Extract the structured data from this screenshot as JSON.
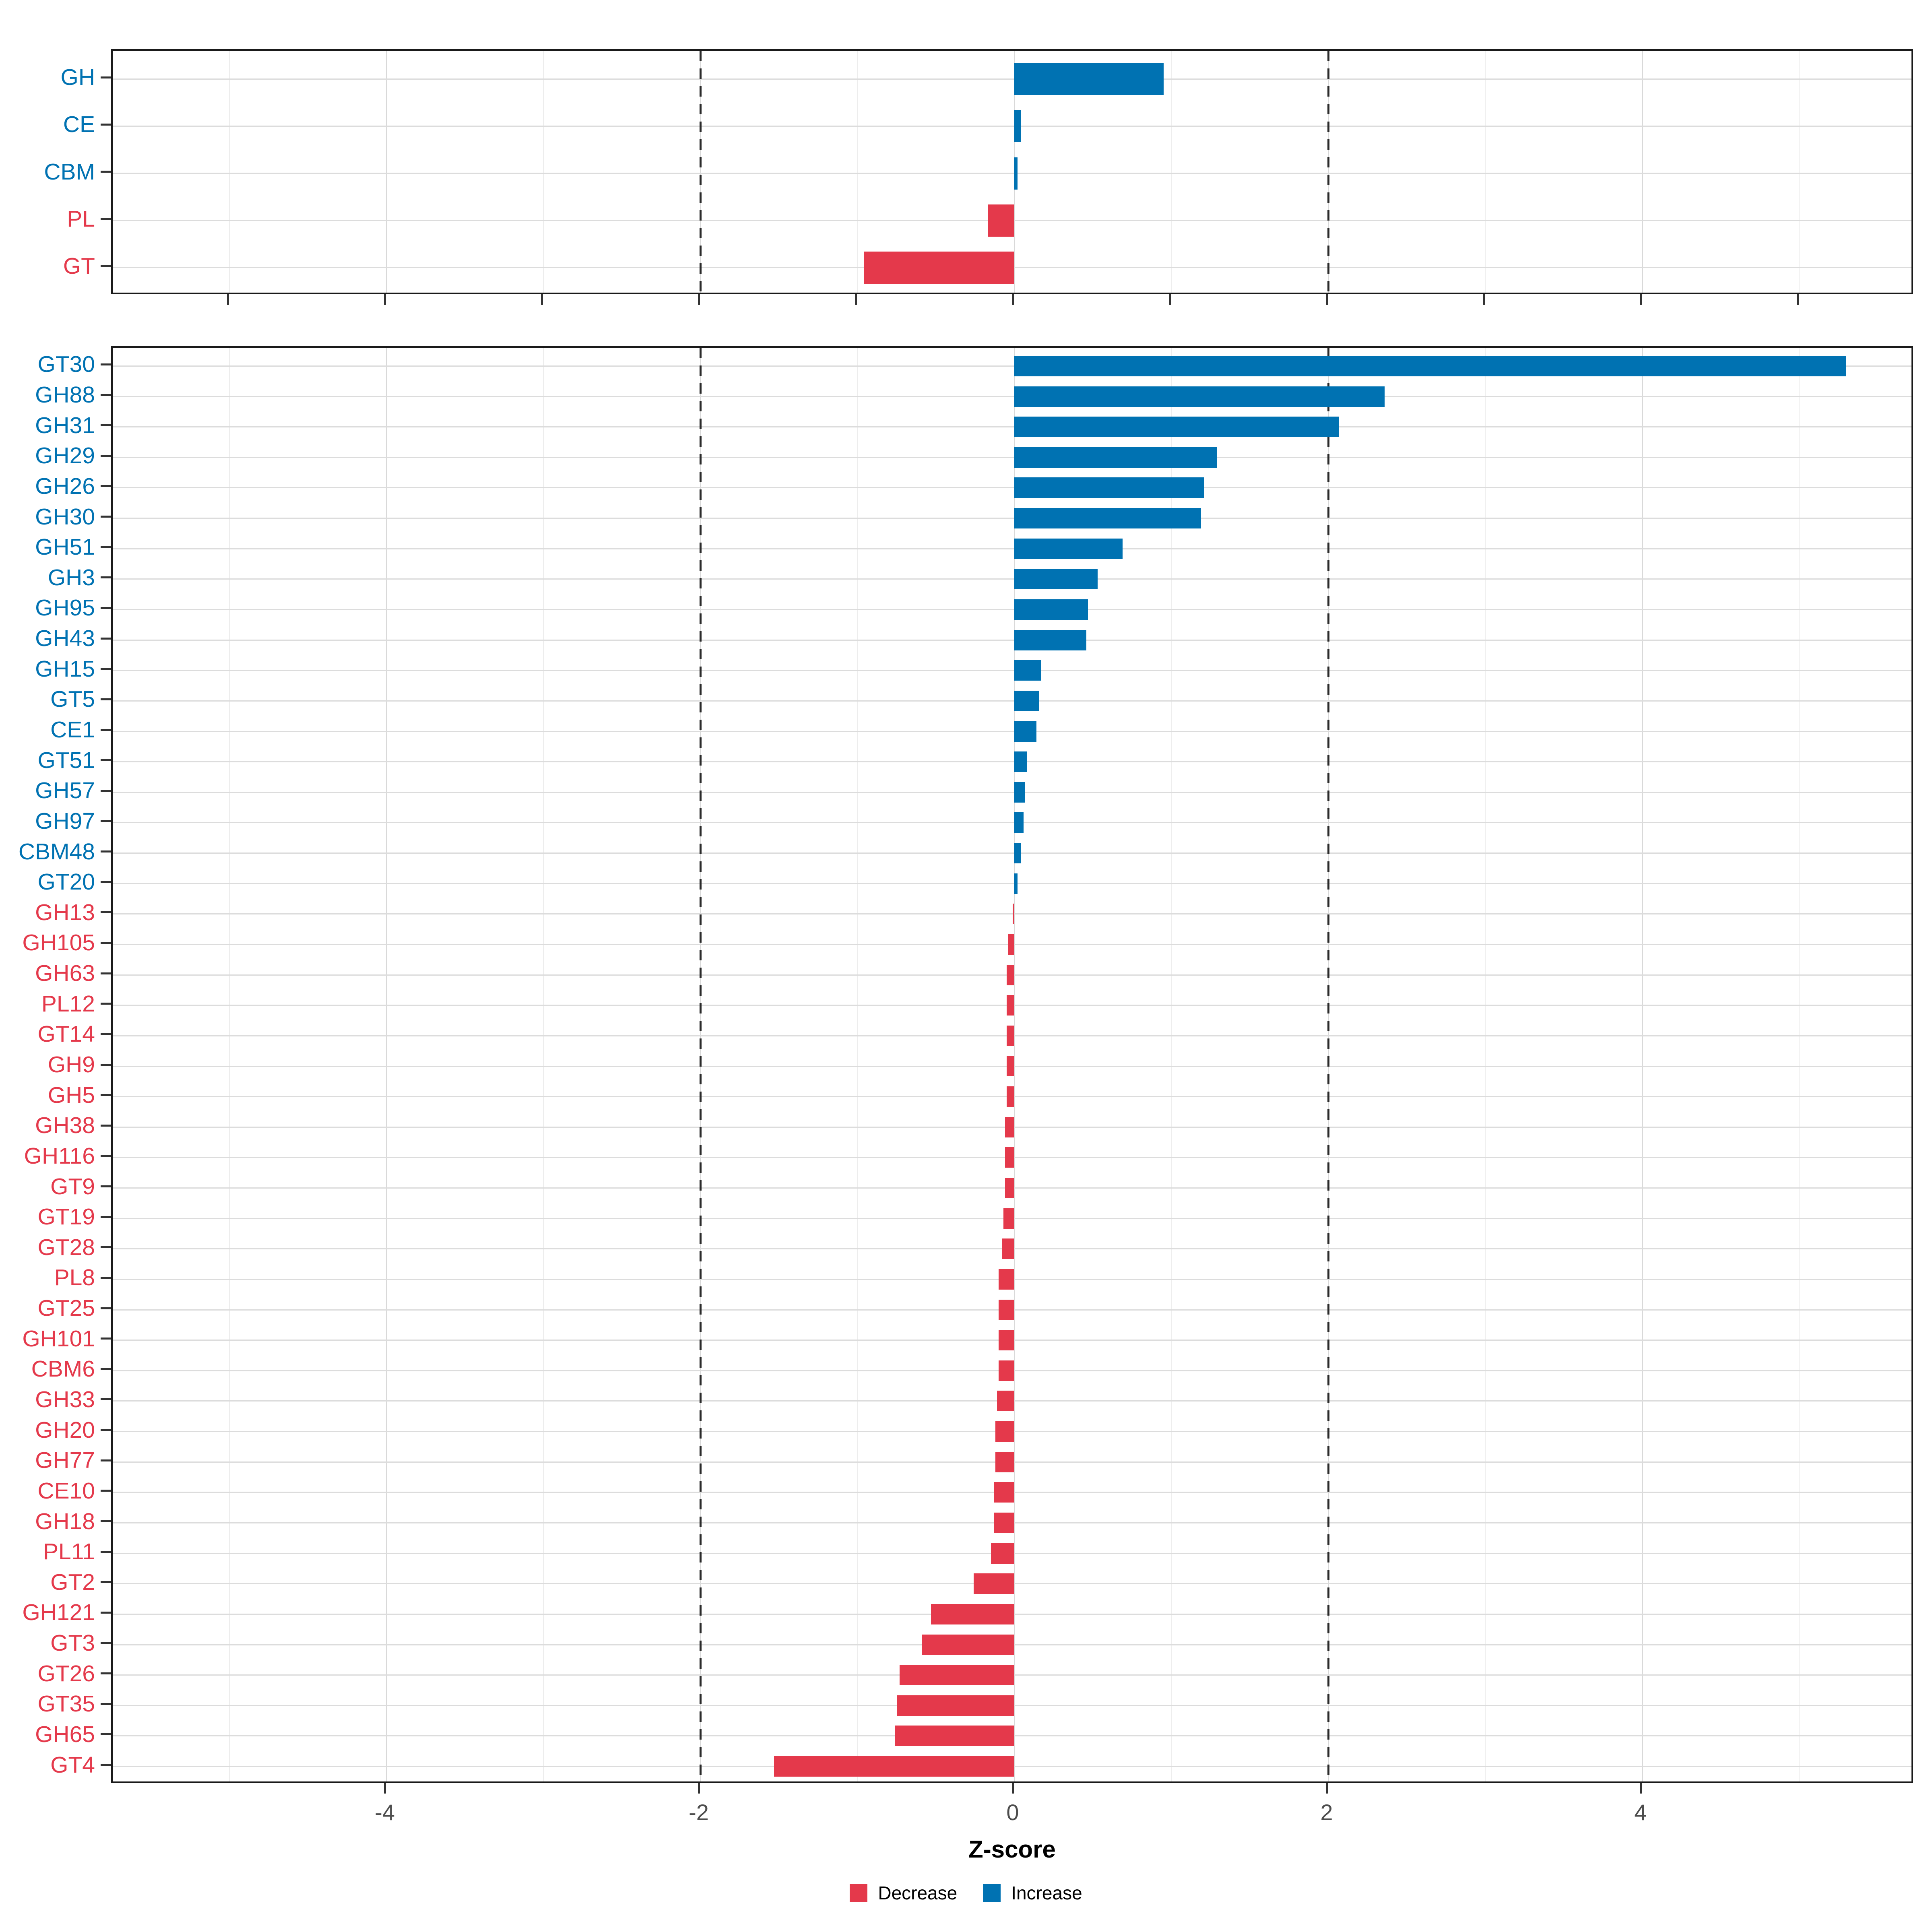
{
  "chart_data": {
    "type": "bar",
    "orientation": "horizontal",
    "title": "",
    "xlabel": "Z-score",
    "x_ticks": [
      -4,
      -2,
      0,
      2,
      4
    ],
    "x_minor_ticks": [
      -5,
      -3,
      -1,
      1,
      3,
      5
    ],
    "x_range": [
      -5.74,
      5.74
    ],
    "dashed_reference_lines_x": [
      -2,
      2
    ],
    "grid": true,
    "legend_position": "bottom",
    "legend": [
      {
        "label": "Decrease",
        "color": "#e4394b"
      },
      {
        "label": "Increase",
        "color": "#0072b2"
      }
    ],
    "colors": {
      "increase": "#0072b2",
      "decrease": "#e4394b"
    },
    "panels": [
      {
        "name": "families",
        "categories": [
          "GH",
          "CE",
          "CBM",
          "PL",
          "GT"
        ],
        "values": [
          0.95,
          0.04,
          0.02,
          -0.17,
          -0.96
        ]
      },
      {
        "name": "subfamilies",
        "categories": [
          "GT30",
          "GH88",
          "GH31",
          "GH29",
          "GH26",
          "GH30",
          "GH51",
          "GH3",
          "GH95",
          "GH43",
          "GH15",
          "GT5",
          "CE1",
          "GT51",
          "GH57",
          "GH97",
          "CBM48",
          "GT20",
          "GH13",
          "GH105",
          "GH63",
          "PL12",
          "GT14",
          "GH9",
          "GH5",
          "GH38",
          "GH116",
          "GT9",
          "GT19",
          "GT28",
          "PL8",
          "GT25",
          "GH101",
          "CBM6",
          "GH33",
          "GH20",
          "GH77",
          "CE10",
          "GH18",
          "PL11",
          "GT2",
          "GH121",
          "GT3",
          "GT26",
          "GT35",
          "GH65",
          "GT4"
        ],
        "values": [
          5.3,
          2.36,
          2.07,
          1.29,
          1.21,
          1.19,
          0.69,
          0.53,
          0.47,
          0.46,
          0.17,
          0.16,
          0.14,
          0.08,
          0.07,
          0.06,
          0.04,
          0.02,
          -0.01,
          -0.04,
          -0.05,
          -0.05,
          -0.05,
          -0.05,
          -0.05,
          -0.06,
          -0.06,
          -0.06,
          -0.07,
          -0.08,
          -0.1,
          -0.1,
          -0.1,
          -0.1,
          -0.11,
          -0.12,
          -0.12,
          -0.13,
          -0.13,
          -0.15,
          -0.26,
          -0.53,
          -0.59,
          -0.73,
          -0.75,
          -0.76,
          -1.53
        ]
      }
    ]
  }
}
